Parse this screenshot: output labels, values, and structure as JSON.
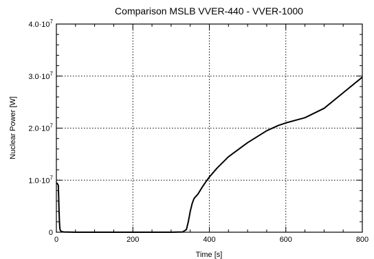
{
  "chart_data": {
    "type": "line",
    "title": "Comparison MSLB VVER-440 - VVER-1000",
    "xlabel": "Time [s]",
    "ylabel": "Nuclear Power [W]",
    "xlim": [
      0,
      800
    ],
    "ylim": [
      0,
      40000000
    ],
    "x_ticks": [
      0,
      200,
      400,
      600,
      800
    ],
    "x_tick_labels": [
      "0",
      "200",
      "400",
      "600",
      "800"
    ],
    "y_ticks": [
      0,
      10000000,
      20000000,
      30000000,
      40000000
    ],
    "y_tick_labels": [
      {
        "mantissa": "0",
        "exponent": ""
      },
      {
        "mantissa": "1.0·10",
        "exponent": "7"
      },
      {
        "mantissa": "2.0·10",
        "exponent": "7"
      },
      {
        "mantissa": "3.0·10",
        "exponent": "7"
      },
      {
        "mantissa": "4.0·10",
        "exponent": "7"
      }
    ],
    "grid": true,
    "series": [
      {
        "x": [
          0,
          3,
          5,
          6,
          7,
          8,
          9,
          10,
          12,
          15,
          20,
          30,
          50,
          100,
          200,
          300,
          330,
          340,
          345,
          350,
          355,
          360,
          370,
          380,
          390,
          400,
          420,
          450,
          500,
          550,
          580,
          600,
          650,
          700,
          750,
          800
        ],
        "y": [
          9500000,
          9300000,
          9000000,
          7000000,
          4000000,
          2000000,
          800000,
          400000,
          200000,
          100000,
          50000,
          20000,
          0,
          0,
          0,
          0,
          50000,
          500000,
          2000000,
          4000000,
          5500000,
          6500000,
          7300000,
          8500000,
          9600000,
          10600000,
          12300000,
          14500000,
          17200000,
          19500000,
          20500000,
          21000000,
          22000000,
          23800000,
          26800000,
          29800000
        ]
      }
    ]
  }
}
